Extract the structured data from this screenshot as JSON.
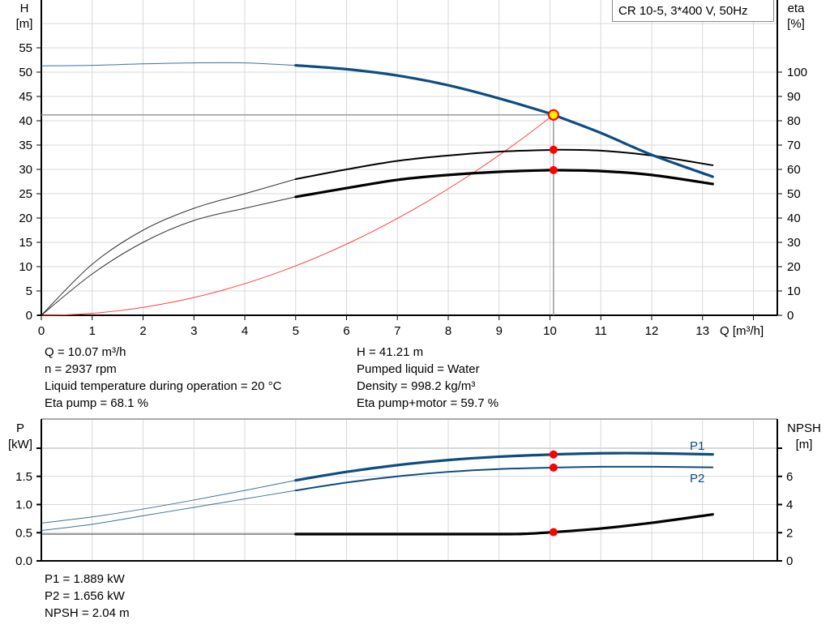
{
  "chart_data": [
    {
      "type": "line",
      "title": "CR 10-5, 3*400 V, 50Hz",
      "xlabel": "Q [m³/h]",
      "ylabel_left": [
        "H",
        "[m]"
      ],
      "ylabel_right": [
        "eta",
        "[%]"
      ],
      "xlim": [
        0,
        14.5
      ],
      "ylim_left": [
        0,
        60
      ],
      "ylim_right": [
        0,
        120
      ],
      "x_ticks": [
        0,
        1,
        2,
        3,
        4,
        5,
        6,
        7,
        8,
        9,
        10,
        11,
        12,
        13
      ],
      "y_ticks_left": [
        0,
        5,
        10,
        15,
        20,
        25,
        30,
        35,
        40,
        45,
        50,
        55
      ],
      "y_ticks_right": [
        0,
        10,
        20,
        30,
        40,
        50,
        60,
        70,
        80,
        90,
        100
      ],
      "grid": true,
      "series": [
        {
          "id": "head",
          "axis": "left",
          "color": "#0f4c81",
          "thick_from": 5,
          "x": [
            0,
            1,
            2,
            3,
            4,
            5,
            6,
            7,
            8,
            9,
            10,
            10.07,
            11,
            12,
            13.2
          ],
          "y": [
            51.3,
            51.4,
            51.7,
            51.9,
            51.9,
            51.4,
            50.6,
            49.3,
            47.3,
            44.6,
            41.5,
            41.21,
            37.5,
            33,
            28.5
          ]
        },
        {
          "id": "eta-pump",
          "axis": "right",
          "color": "#000000",
          "thick_from": 5,
          "thin": true,
          "x": [
            0,
            1,
            2,
            3,
            4,
            5,
            6,
            7,
            8,
            9,
            10,
            10.07,
            11,
            12,
            13.2
          ],
          "y": [
            0,
            21,
            35,
            44,
            50,
            56,
            60,
            63.5,
            65.7,
            67.3,
            68,
            68.1,
            67.7,
            65.7,
            61.7
          ]
        },
        {
          "id": "eta-pump-motor",
          "axis": "right",
          "color": "#000000",
          "thick_from": 5,
          "x": [
            0,
            1,
            2,
            3,
            4,
            5,
            6,
            7,
            8,
            9,
            10,
            10.07,
            11,
            12,
            13.2
          ],
          "y": [
            0,
            17,
            30,
            39,
            44,
            48.7,
            52.3,
            55.7,
            57.7,
            59,
            59.7,
            59.7,
            59.3,
            57.7,
            54
          ]
        },
        {
          "id": "system-curve",
          "axis": "left",
          "color": "#ff4040",
          "quadratic_through": [
            10.07,
            41.21
          ]
        }
      ],
      "operating_point": {
        "Q": 10.07,
        "H": 41.21,
        "eta_pump": 68.1,
        "eta_pump_motor": 59.7
      }
    },
    {
      "type": "line",
      "xlim": [
        0,
        14.5
      ],
      "ylabel_left": [
        "P",
        "[kW]"
      ],
      "ylabel_right": [
        "NPSH",
        "[m]"
      ],
      "ylim_left": [
        0,
        2.4
      ],
      "ylim_right": [
        0,
        9.6
      ],
      "y_ticks_left": [
        "0.0",
        "0.5",
        "1.0",
        "1.5",
        ""
      ],
      "y_ticks_right": [
        "0",
        "2",
        "4",
        "6",
        ""
      ],
      "grid": true,
      "series": [
        {
          "name": "P1",
          "axis": "left",
          "color": "#0f4c81",
          "thick_from": 5,
          "x": [
            0,
            1,
            2,
            3,
            4,
            5,
            6,
            7,
            8,
            9,
            10.07,
            11,
            12,
            13.2
          ],
          "y": [
            0.67,
            0.78,
            0.92,
            1.08,
            1.25,
            1.43,
            1.58,
            1.7,
            1.79,
            1.85,
            1.889,
            1.91,
            1.91,
            1.89
          ]
        },
        {
          "name": "P2",
          "axis": "left",
          "color": "#0f4c81",
          "thick_from": 5,
          "thin": true,
          "x": [
            0,
            1,
            2,
            3,
            4,
            5,
            6,
            7,
            8,
            9,
            10.07,
            11,
            12,
            13.2
          ],
          "y": [
            0.54,
            0.65,
            0.8,
            0.95,
            1.1,
            1.25,
            1.39,
            1.5,
            1.58,
            1.63,
            1.656,
            1.67,
            1.67,
            1.66
          ]
        },
        {
          "id": "npsh",
          "axis": "right",
          "color": "#000000",
          "thick_from": 5,
          "x": [
            0,
            2,
            5,
            7,
            9,
            9.5,
            10.07,
            11,
            12,
            13.2
          ],
          "y": [
            1.9,
            1.9,
            1.9,
            1.9,
            1.9,
            1.92,
            2.04,
            2.3,
            2.7,
            3.3
          ]
        }
      ],
      "operating_point": {
        "Q": 10.07,
        "P1": 1.889,
        "P2": 1.656,
        "NPSH": 2.04
      }
    }
  ],
  "info": {
    "left": [
      "Q = 10.07 m³/h",
      "n = 2937 rpm",
      "Liquid temperature during operation = 20 °C",
      "Eta pump = 68.1 %"
    ],
    "right": [
      "H = 41.21 m",
      "Pumped liquid = Water",
      "Density = 998.2 kg/m³",
      "Eta pump+motor = 59.7 %"
    ],
    "bottom": [
      "P1 = 1.889 kW",
      "P2 = 1.656 kW",
      "NPSH = 2.04 m"
    ]
  },
  "colors": {
    "curve_blue": "#0f4c81",
    "marker_red": "#ff0000",
    "marker_yellow": "#ffee00",
    "system_curve": "#ff4040",
    "grid": "#d8d8d8"
  }
}
